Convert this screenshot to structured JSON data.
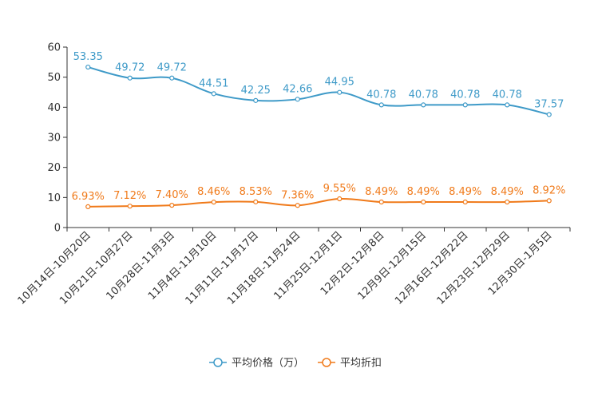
{
  "chart_data": {
    "type": "line",
    "categories": [
      "10月14日-10月20日",
      "10月21日-10月27日",
      "10月28日-11月3日",
      "11月4日-11月10日",
      "11月11日-11月17日",
      "11月18日-11月24日",
      "11月25日-12月1日",
      "12月2日-12月8日",
      "12月9日-12月15日",
      "12月16日-12月22日",
      "12月23日-12月29日",
      "12月30日-1月5日"
    ],
    "ylim": [
      0,
      60
    ],
    "yticks": [
      0,
      10,
      20,
      30,
      40,
      50,
      60
    ],
    "series": [
      {
        "name": "平均价格（万）",
        "color": "#3e9ac8",
        "values": [
          53.35,
          49.72,
          49.72,
          44.51,
          42.25,
          42.66,
          44.95,
          40.78,
          40.78,
          40.78,
          40.78,
          37.57
        ],
        "labels": [
          "53.35",
          "49.72",
          "49.72",
          "44.51",
          "42.25",
          "42.66",
          "44.95",
          "40.78",
          "40.78",
          "40.78",
          "40.78",
          "37.57"
        ]
      },
      {
        "name": "平均折扣",
        "color": "#f07a1a",
        "values": [
          6.93,
          7.12,
          7.4,
          8.46,
          8.53,
          7.36,
          9.55,
          8.49,
          8.49,
          8.49,
          8.49,
          8.92
        ],
        "labels": [
          "6.93%",
          "7.12%",
          "7.40%",
          "8.46%",
          "8.53%",
          "7.36%",
          "9.55%",
          "8.49%",
          "8.49%",
          "8.49%",
          "8.49%",
          "8.92%"
        ]
      }
    ]
  }
}
